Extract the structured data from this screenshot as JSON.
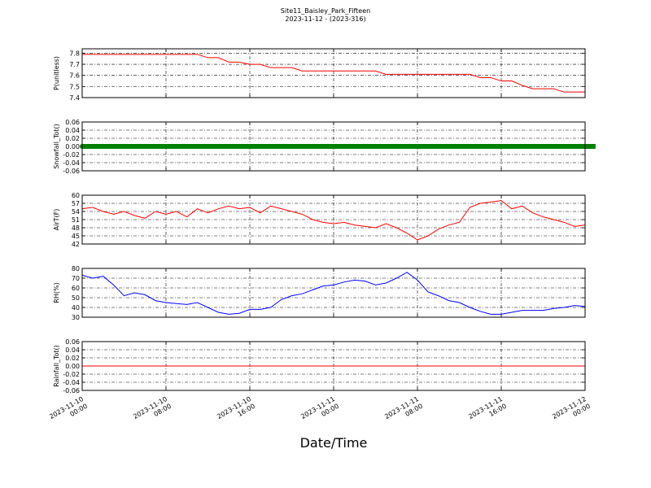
{
  "title": "Site11_Baisley_Park_Fifteen",
  "subtitle": "2023-11-12 - (2023-316)",
  "xlabel": "Date/Time",
  "x": [
    "2023-11-10 00:00",
    "2023-11-10 01:00",
    "2023-11-10 02:00",
    "2023-11-10 03:00",
    "2023-11-10 04:00",
    "2023-11-10 05:00",
    "2023-11-10 06:00",
    "2023-11-10 07:00",
    "2023-11-10 08:00",
    "2023-11-10 09:00",
    "2023-11-10 10:00",
    "2023-11-10 11:00",
    "2023-11-10 12:00",
    "2023-11-10 13:00",
    "2023-11-10 14:00",
    "2023-11-10 15:00",
    "2023-11-10 16:00",
    "2023-11-10 17:00",
    "2023-11-10 18:00",
    "2023-11-10 19:00",
    "2023-11-10 20:00",
    "2023-11-10 21:00",
    "2023-11-10 22:00",
    "2023-11-10 23:00",
    "2023-11-11 00:00",
    "2023-11-11 01:00",
    "2023-11-11 02:00",
    "2023-11-11 03:00",
    "2023-11-11 04:00",
    "2023-11-11 05:00",
    "2023-11-11 06:00",
    "2023-11-11 07:00",
    "2023-11-11 08:00",
    "2023-11-11 09:00",
    "2023-11-11 10:00",
    "2023-11-11 11:00",
    "2023-11-11 12:00",
    "2023-11-11 13:00",
    "2023-11-11 14:00",
    "2023-11-11 15:00",
    "2023-11-11 16:00",
    "2023-11-11 17:00",
    "2023-11-11 18:00",
    "2023-11-11 19:00",
    "2023-11-11 20:00",
    "2023-11-11 21:00",
    "2023-11-11 22:00",
    "2023-11-11 23:00",
    "2023-11-12 00:00"
  ],
  "xlim": [
    "2023-11-10 00:00",
    "2023-11-12 00:00"
  ],
  "xticks": [
    "2023-11-10 00:00",
    "2023-11-10 08:00",
    "2023-11-10 16:00",
    "2023-11-11 00:00",
    "2023-11-11 08:00",
    "2023-11-11 16:00",
    "2023-11-12 00:00"
  ],
  "chart_data": [
    {
      "type": "line",
      "ylabel": "P(unitless)",
      "ylim": [
        7.4,
        7.84
      ],
      "yticks": [
        7.4,
        7.5,
        7.6,
        7.7,
        7.8
      ],
      "grid": true,
      "series": [
        {
          "color": "#ff0000",
          "marker": false,
          "values": [
            7.79,
            7.79,
            7.79,
            7.79,
            7.79,
            7.79,
            7.79,
            7.79,
            7.79,
            7.79,
            7.79,
            7.79,
            7.76,
            7.76,
            7.72,
            7.72,
            7.7,
            7.7,
            7.67,
            7.67,
            7.67,
            7.64,
            7.64,
            7.64,
            7.64,
            7.64,
            7.64,
            7.64,
            7.64,
            7.61,
            7.61,
            7.61,
            7.61,
            7.61,
            7.61,
            7.61,
            7.61,
            7.61,
            7.58,
            7.58,
            7.55,
            7.55,
            7.51,
            7.48,
            7.48,
            7.48,
            7.45,
            7.45,
            7.45
          ]
        }
      ]
    },
    {
      "type": "line",
      "ylabel": "Snowfall_Tot()",
      "ylim": [
        -0.06,
        0.06
      ],
      "yticks": [
        -0.06,
        -0.04,
        -0.02,
        {
          "value": 0,
          "label": "0.00"
        },
        0.02,
        0.04,
        0.06
      ],
      "grid": true,
      "series": [
        {
          "color": "#008000",
          "marker": true,
          "values": [
            0,
            0,
            0,
            0,
            0,
            0,
            0,
            0,
            0,
            0,
            0,
            0,
            0,
            0,
            0,
            0,
            0,
            0,
            0,
            0,
            0,
            0,
            0,
            0,
            0,
            0,
            0,
            0,
            0,
            0,
            0,
            0,
            0,
            0,
            0,
            0,
            0,
            0,
            0,
            0,
            0,
            0,
            0,
            0,
            0,
            0,
            0,
            0,
            0
          ]
        }
      ]
    },
    {
      "type": "line",
      "ylabel": "AirT(F)",
      "ylim": [
        42,
        60
      ],
      "yticks": [
        42,
        45,
        48,
        51,
        54,
        57,
        60
      ],
      "grid": true,
      "series": [
        {
          "color": "#ff0000",
          "marker": false,
          "values": [
            55,
            55.5,
            54,
            53,
            54,
            52.5,
            51.5,
            54,
            53,
            54,
            52,
            55,
            53.5,
            55,
            56,
            55,
            55.5,
            53.5,
            56,
            55,
            54,
            53,
            51,
            50,
            49.5,
            50,
            49,
            48.5,
            48,
            49.5,
            48,
            46,
            43.5,
            45,
            47.5,
            49,
            50,
            55.5,
            57,
            57.5,
            58,
            55,
            56,
            53.5,
            52,
            51,
            50,
            48.5,
            49
          ]
        }
      ]
    },
    {
      "type": "line",
      "ylabel": "RH(%)",
      "ylim": [
        30,
        80
      ],
      "yticks": [
        30,
        40,
        50,
        60,
        70,
        80
      ],
      "grid": true,
      "series": [
        {
          "color": "#0000ff",
          "marker": false,
          "values": [
            73,
            70,
            72,
            63,
            52,
            55,
            53,
            47,
            45,
            44,
            43,
            45,
            40,
            35,
            33,
            34,
            38,
            38,
            40,
            48,
            52,
            54,
            58,
            62,
            63,
            66,
            68,
            67,
            63,
            65,
            70,
            76,
            68,
            56,
            52,
            47,
            45,
            40,
            36,
            33,
            33,
            35,
            37,
            37,
            37,
            39,
            40,
            42,
            41
          ]
        }
      ]
    },
    {
      "type": "line",
      "ylabel": "Rainfall_Tot()",
      "ylim": [
        -0.06,
        0.06
      ],
      "yticks": [
        -0.06,
        -0.04,
        -0.02,
        {
          "value": 0,
          "label": "0.00"
        },
        0.02,
        0.04,
        0.06
      ],
      "grid": true,
      "series": [
        {
          "color": "#ff0000",
          "marker": false,
          "values": [
            0,
            0,
            0,
            0,
            0,
            0,
            0,
            0,
            0,
            0,
            0,
            0,
            0,
            0,
            0,
            0,
            0,
            0,
            0,
            0,
            0,
            0,
            0,
            0,
            0,
            0,
            0,
            0,
            0,
            0,
            0,
            0,
            0,
            0,
            0,
            0,
            0,
            0,
            0,
            0,
            0,
            0,
            0,
            0,
            0,
            0,
            0,
            0,
            0
          ]
        }
      ]
    }
  ]
}
